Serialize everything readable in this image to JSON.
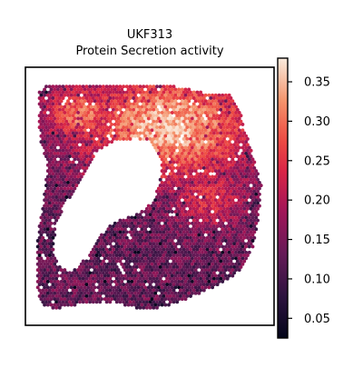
{
  "chart_data": {
    "type": "heatmap",
    "title": "UKF313",
    "subtitle": "Protein Secretion activity",
    "colormap": "rocket",
    "colorbar": {
      "range": [
        0.025,
        0.38
      ],
      "ticks": [
        0.05,
        0.1,
        0.15,
        0.2,
        0.25,
        0.3,
        0.35
      ],
      "tick_labels": [
        "0.05",
        "0.10",
        "0.15",
        "0.20",
        "0.25",
        "0.30",
        "0.35"
      ]
    },
    "axes_visible": false,
    "grid": false,
    "colors": {
      "low": "#03051a",
      "mid": "#cb1b4f",
      "high": "#faebdd"
    }
  }
}
